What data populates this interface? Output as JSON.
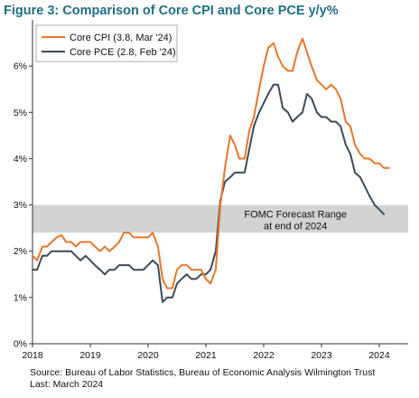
{
  "title": "Figure 3: Comparison of Core CPI and Core PCE y/y%",
  "source_line1": "Source: Bureau of Labor Statistics, Bureau of Economic Analysis Wilmington Trust",
  "source_line2": "Last: March 2024",
  "chart_data": {
    "type": "line",
    "xlim": [
      2018,
      2024.5
    ],
    "ylim": [
      0,
      7
    ],
    "x_ticks": [
      2018,
      2019,
      2020,
      2021,
      2022,
      2023,
      2024
    ],
    "x_tick_labels": [
      "2018",
      "2019",
      "2020",
      "2021",
      "2022",
      "2023",
      "2024"
    ],
    "y_ticks": [
      0,
      1,
      2,
      3,
      4,
      5,
      6
    ],
    "y_tick_labels": [
      "0%",
      "1%",
      "2%",
      "3%",
      "4%",
      "5%",
      "6%"
    ],
    "grid": false,
    "legend_position": "top-left",
    "band": {
      "y_from": 2.4,
      "y_to": 3.0,
      "color": "#d3d3d3",
      "label_line1": "FOMC Forecast Range",
      "label_line2": "at end of 2024"
    },
    "series": [
      {
        "name": "Core CPI (3.8, Mar '24)",
        "color": "#e8762b",
        "points": [
          [
            2018.0,
            1.9
          ],
          [
            2018.08,
            1.8
          ],
          [
            2018.17,
            2.1
          ],
          [
            2018.25,
            2.1
          ],
          [
            2018.33,
            2.2
          ],
          [
            2018.42,
            2.3
          ],
          [
            2018.5,
            2.35
          ],
          [
            2018.58,
            2.2
          ],
          [
            2018.67,
            2.2
          ],
          [
            2018.75,
            2.1
          ],
          [
            2018.83,
            2.2
          ],
          [
            2018.92,
            2.2
          ],
          [
            2019.0,
            2.2
          ],
          [
            2019.08,
            2.1
          ],
          [
            2019.17,
            2.0
          ],
          [
            2019.25,
            2.1
          ],
          [
            2019.33,
            2.0
          ],
          [
            2019.42,
            2.1
          ],
          [
            2019.5,
            2.2
          ],
          [
            2019.58,
            2.4
          ],
          [
            2019.67,
            2.4
          ],
          [
            2019.75,
            2.3
          ],
          [
            2019.83,
            2.3
          ],
          [
            2019.92,
            2.3
          ],
          [
            2020.0,
            2.3
          ],
          [
            2020.08,
            2.4
          ],
          [
            2020.17,
            2.1
          ],
          [
            2020.25,
            1.4
          ],
          [
            2020.33,
            1.2
          ],
          [
            2020.42,
            1.2
          ],
          [
            2020.5,
            1.6
          ],
          [
            2020.58,
            1.7
          ],
          [
            2020.67,
            1.7
          ],
          [
            2020.75,
            1.6
          ],
          [
            2020.83,
            1.6
          ],
          [
            2020.92,
            1.6
          ],
          [
            2021.0,
            1.4
          ],
          [
            2021.08,
            1.3
          ],
          [
            2021.17,
            1.6
          ],
          [
            2021.25,
            3.0
          ],
          [
            2021.33,
            3.8
          ],
          [
            2021.42,
            4.5
          ],
          [
            2021.5,
            4.3
          ],
          [
            2021.58,
            4.0
          ],
          [
            2021.67,
            4.0
          ],
          [
            2021.75,
            4.6
          ],
          [
            2021.83,
            4.9
          ],
          [
            2021.92,
            5.5
          ],
          [
            2022.0,
            6.0
          ],
          [
            2022.08,
            6.4
          ],
          [
            2022.17,
            6.5
          ],
          [
            2022.25,
            6.2
          ],
          [
            2022.33,
            6.0
          ],
          [
            2022.42,
            5.9
          ],
          [
            2022.5,
            5.9
          ],
          [
            2022.58,
            6.3
          ],
          [
            2022.67,
            6.6
          ],
          [
            2022.75,
            6.3
          ],
          [
            2022.83,
            6.0
          ],
          [
            2022.92,
            5.7
          ],
          [
            2023.0,
            5.6
          ],
          [
            2023.08,
            5.5
          ],
          [
            2023.17,
            5.6
          ],
          [
            2023.25,
            5.5
          ],
          [
            2023.33,
            5.3
          ],
          [
            2023.42,
            4.8
          ],
          [
            2023.5,
            4.7
          ],
          [
            2023.58,
            4.3
          ],
          [
            2023.67,
            4.1
          ],
          [
            2023.75,
            4.0
          ],
          [
            2023.83,
            4.0
          ],
          [
            2023.92,
            3.9
          ],
          [
            2024.0,
            3.9
          ],
          [
            2024.08,
            3.8
          ],
          [
            2024.17,
            3.8
          ]
        ]
      },
      {
        "name": "Core PCE (2.8, Feb '24)",
        "color": "#3c4a57",
        "points": [
          [
            2018.0,
            1.6
          ],
          [
            2018.08,
            1.6
          ],
          [
            2018.17,
            1.9
          ],
          [
            2018.25,
            1.9
          ],
          [
            2018.33,
            2.0
          ],
          [
            2018.42,
            2.0
          ],
          [
            2018.5,
            2.0
          ],
          [
            2018.58,
            2.0
          ],
          [
            2018.67,
            2.0
          ],
          [
            2018.75,
            1.9
          ],
          [
            2018.83,
            1.8
          ],
          [
            2018.92,
            1.9
          ],
          [
            2019.0,
            1.8
          ],
          [
            2019.08,
            1.7
          ],
          [
            2019.17,
            1.6
          ],
          [
            2019.25,
            1.5
          ],
          [
            2019.33,
            1.6
          ],
          [
            2019.42,
            1.6
          ],
          [
            2019.5,
            1.7
          ],
          [
            2019.58,
            1.7
          ],
          [
            2019.67,
            1.7
          ],
          [
            2019.75,
            1.6
          ],
          [
            2019.83,
            1.6
          ],
          [
            2019.92,
            1.6
          ],
          [
            2020.0,
            1.7
          ],
          [
            2020.08,
            1.8
          ],
          [
            2020.17,
            1.7
          ],
          [
            2020.25,
            0.9
          ],
          [
            2020.33,
            1.0
          ],
          [
            2020.42,
            1.0
          ],
          [
            2020.5,
            1.3
          ],
          [
            2020.58,
            1.4
          ],
          [
            2020.67,
            1.5
          ],
          [
            2020.75,
            1.4
          ],
          [
            2020.83,
            1.4
          ],
          [
            2020.92,
            1.5
          ],
          [
            2021.0,
            1.5
          ],
          [
            2021.08,
            1.6
          ],
          [
            2021.17,
            2.0
          ],
          [
            2021.25,
            3.1
          ],
          [
            2021.33,
            3.5
          ],
          [
            2021.42,
            3.6
          ],
          [
            2021.5,
            3.7
          ],
          [
            2021.58,
            3.7
          ],
          [
            2021.67,
            3.7
          ],
          [
            2021.75,
            4.2
          ],
          [
            2021.83,
            4.7
          ],
          [
            2021.92,
            5.0
          ],
          [
            2022.0,
            5.2
          ],
          [
            2022.08,
            5.4
          ],
          [
            2022.17,
            5.6
          ],
          [
            2022.25,
            5.6
          ],
          [
            2022.33,
            5.1
          ],
          [
            2022.42,
            5.0
          ],
          [
            2022.5,
            4.8
          ],
          [
            2022.58,
            4.9
          ],
          [
            2022.67,
            5.0
          ],
          [
            2022.75,
            5.4
          ],
          [
            2022.83,
            5.3
          ],
          [
            2022.92,
            5.0
          ],
          [
            2023.0,
            4.9
          ],
          [
            2023.08,
            4.9
          ],
          [
            2023.17,
            4.8
          ],
          [
            2023.25,
            4.8
          ],
          [
            2023.33,
            4.7
          ],
          [
            2023.42,
            4.3
          ],
          [
            2023.5,
            4.1
          ],
          [
            2023.58,
            3.7
          ],
          [
            2023.67,
            3.6
          ],
          [
            2023.75,
            3.4
          ],
          [
            2023.83,
            3.2
          ],
          [
            2023.92,
            3.0
          ],
          [
            2024.0,
            2.9
          ],
          [
            2024.08,
            2.8
          ]
        ]
      }
    ]
  }
}
